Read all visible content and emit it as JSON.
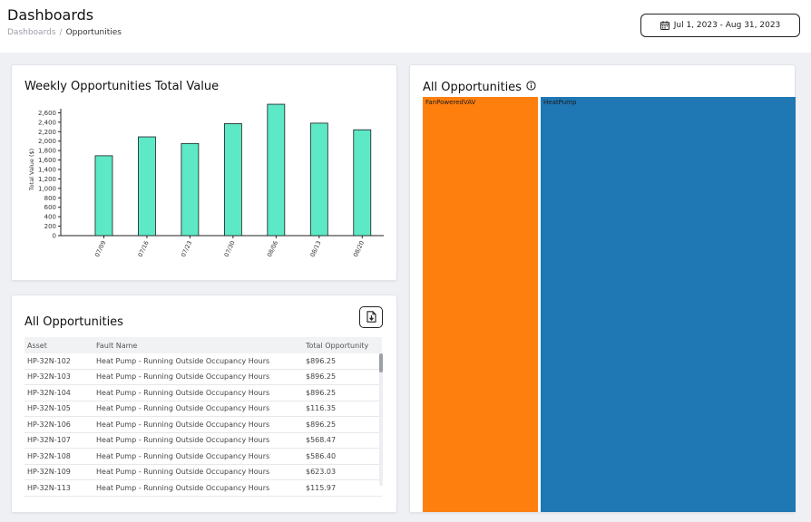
{
  "header": {
    "title": "Dashboards",
    "breadcrumb": {
      "parent": "Dashboards",
      "separator": "/",
      "current": "Opportunities"
    },
    "date_range": "Jul 1, 2023 - Aug 31, 2023"
  },
  "weekly_chart": {
    "title": "Weekly Opportunities Total Value",
    "ylabel": "Total Value ($)",
    "y_ticks": [
      "0",
      "200",
      "400",
      "600",
      "800",
      "1,000",
      "1,200",
      "1,400",
      "1,600",
      "1,800",
      "2,000",
      "2,200",
      "2,400",
      "2,600"
    ],
    "bar_color": "#5de9c6",
    "bar_stroke": "#1a1a1a"
  },
  "chart_data": {
    "type": "bar",
    "title": "Weekly Opportunities Total Value",
    "xlabel": "",
    "ylabel": "Total Value ($)",
    "categories": [
      "07/09",
      "07/16",
      "07/23",
      "07/30",
      "08/06",
      "08/13",
      "08/20"
    ],
    "values": [
      1690,
      2090,
      1950,
      2370,
      2780,
      2380,
      2240
    ],
    "ylim": [
      0,
      2800
    ],
    "grid": false,
    "legend": "none"
  },
  "opportunities_table": {
    "title": "All Opportunities",
    "columns": [
      "Asset",
      "Fault Name",
      "Total Opportunity"
    ],
    "rows": [
      [
        "HP-32N-102",
        "Heat Pump - Running Outside Occupancy Hours",
        "$896.25"
      ],
      [
        "HP-32N-103",
        "Heat Pump - Running Outside Occupancy Hours",
        "$896.25"
      ],
      [
        "HP-32N-104",
        "Heat Pump - Running Outside Occupancy Hours",
        "$896.25"
      ],
      [
        "HP-32N-105",
        "Heat Pump - Running Outside Occupancy Hours",
        "$116.35"
      ],
      [
        "HP-32N-106",
        "Heat Pump - Running Outside Occupancy Hours",
        "$896.25"
      ],
      [
        "HP-32N-107",
        "Heat Pump - Running Outside Occupancy Hours",
        "$568.47"
      ],
      [
        "HP-32N-108",
        "Heat Pump - Running Outside Occupancy Hours",
        "$586.40"
      ],
      [
        "HP-32N-109",
        "Heat Pump - Running Outside Occupancy Hours",
        "$623.03"
      ],
      [
        "HP-32N-113",
        "Heat Pump - Running Outside Occupancy Hours",
        "$115.97"
      ]
    ]
  },
  "treemap": {
    "title": "All Opportunities",
    "tiles": [
      {
        "label": "FanPoweredVAV",
        "color": "#ff7f0e",
        "share": 0.316
      },
      {
        "label": "HeatPump",
        "color": "#1f77b4",
        "share": 0.684
      }
    ]
  },
  "icons": {
    "date": "calendar-icon",
    "export": "export-file-icon",
    "info": "info-icon"
  }
}
